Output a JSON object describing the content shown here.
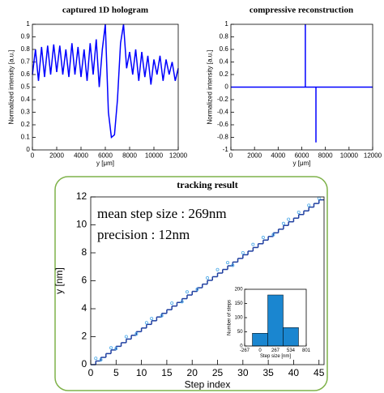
{
  "chart_data": [
    {
      "type": "line",
      "title": "captured 1D hologram",
      "xlabel": "y [μm]",
      "ylabel": "Normalized intensity [a.u.]",
      "x": [
        0,
        250,
        500,
        750,
        1000,
        1250,
        1500,
        1750,
        2000,
        2250,
        2500,
        2750,
        3000,
        3250,
        3500,
        3750,
        4000,
        4250,
        4500,
        4750,
        5000,
        5250,
        5500,
        5750,
        6000,
        6250,
        6500,
        6750,
        7000,
        7250,
        7500,
        7750,
        8000,
        8250,
        8500,
        8750,
        9000,
        9250,
        9500,
        9750,
        10000,
        10250,
        10500,
        10750,
        11000,
        11250,
        11500,
        11750,
        12000
      ],
      "series": [
        {
          "color": "#0000ff",
          "values": [
            0.6,
            0.8,
            0.55,
            0.82,
            0.58,
            0.83,
            0.6,
            0.84,
            0.62,
            0.83,
            0.6,
            0.8,
            0.58,
            0.85,
            0.6,
            0.82,
            0.58,
            0.8,
            0.55,
            0.85,
            0.6,
            0.88,
            0.5,
            0.8,
            1.0,
            0.3,
            0.1,
            0.12,
            0.4,
            0.85,
            1.0,
            0.65,
            0.78,
            0.6,
            0.8,
            0.55,
            0.78,
            0.58,
            0.75,
            0.52,
            0.72,
            0.6,
            0.75,
            0.55,
            0.72,
            0.6,
            0.7,
            0.55,
            0.65
          ]
        }
      ],
      "xlim": [
        0,
        12000
      ],
      "xticks": [
        0,
        2000,
        4000,
        6000,
        8000,
        10000,
        12000
      ],
      "ylim": [
        0,
        1
      ],
      "yticks": [
        0,
        0.1,
        0.2,
        0.3,
        0.4,
        0.5,
        0.6,
        0.7,
        0.8,
        0.9,
        1
      ]
    },
    {
      "type": "line",
      "title": "compressive reconstruction",
      "xlabel": "y [μm]",
      "ylabel": "Normalized intensity [a.u.]",
      "x": [
        0,
        6300,
        6300,
        6300,
        7200,
        7200,
        7200,
        12000
      ],
      "series": [
        {
          "color": "#0000ff",
          "values": [
            0,
            0,
            1,
            0,
            0,
            -0.88,
            0,
            0
          ]
        }
      ],
      "xlim": [
        0,
        12000
      ],
      "xticks": [
        0,
        2000,
        4000,
        6000,
        8000,
        10000,
        12000
      ],
      "ylim": [
        -1,
        1
      ],
      "yticks": [
        -1,
        -0.8,
        -0.6,
        -0.4,
        -0.2,
        0,
        0.2,
        0.4,
        0.6,
        0.8,
        1
      ]
    },
    {
      "type": "line",
      "title": "tracking result",
      "xlabel": "Step index",
      "ylabel": "y [nm]",
      "annotations": [
        "mean step size : 269nm",
        "precision : 12nm"
      ],
      "x": [
        0,
        1,
        2,
        3,
        4,
        5,
        6,
        7,
        8,
        9,
        10,
        11,
        12,
        13,
        14,
        15,
        16,
        17,
        18,
        19,
        20,
        21,
        22,
        23,
        24,
        25,
        26,
        27,
        28,
        29,
        30,
        31,
        32,
        33,
        34,
        35,
        36,
        37,
        38,
        39,
        40,
        41,
        42,
        43,
        44,
        45
      ],
      "series": [
        {
          "color": "#1f3fa0",
          "drawstyle": "steps-post",
          "values": [
            0,
            0.26,
            0.52,
            0.79,
            1.05,
            1.31,
            1.57,
            1.83,
            2.1,
            2.36,
            2.62,
            2.88,
            3.14,
            3.41,
            3.67,
            3.93,
            4.19,
            4.45,
            4.72,
            4.98,
            5.24,
            5.5,
            5.76,
            6.03,
            6.29,
            6.55,
            6.81,
            7.07,
            7.34,
            7.6,
            7.86,
            8.12,
            8.38,
            8.65,
            8.91,
            9.17,
            9.43,
            9.69,
            9.96,
            10.22,
            10.48,
            10.74,
            11,
            11.27,
            11.53,
            11.79
          ]
        },
        {
          "color": "#4aa8e8",
          "marker": "o",
          "x": [
            1,
            2,
            4,
            5,
            7,
            9,
            11,
            12,
            14,
            16,
            18,
            19,
            21,
            23,
            25,
            27,
            28,
            30,
            32,
            34,
            36,
            38,
            39,
            41,
            43,
            45
          ],
          "values": [
            0.45,
            0.35,
            1.2,
            1.15,
            2.0,
            2.2,
            3.0,
            3.3,
            3.5,
            4.4,
            4.5,
            5.2,
            5.4,
            6.2,
            6.8,
            7.3,
            7.1,
            8.0,
            8.6,
            9.1,
            9.3,
            10.1,
            10.4,
            10.9,
            11.4,
            11.9
          ]
        }
      ],
      "xlim": [
        0,
        46
      ],
      "xticks": [
        0,
        5,
        10,
        15,
        20,
        25,
        30,
        35,
        40,
        45
      ],
      "ylim": [
        0,
        12
      ],
      "yticks": [
        0,
        2,
        4,
        6,
        8,
        10,
        12
      ]
    },
    {
      "type": "histogram",
      "xlabel": "Step size [nm]",
      "ylabel": "Number of steps",
      "color": "#1a86d0",
      "bins": [
        -133.5,
        133.5,
        400.5,
        667.5
      ],
      "values": [
        45,
        180,
        65
      ],
      "xlim": [
        -267,
        801
      ],
      "xticks": [
        -267,
        0,
        267,
        534,
        801
      ],
      "ylim": [
        0,
        200
      ],
      "yticks": [
        0,
        50,
        100,
        150,
        200
      ]
    }
  ]
}
